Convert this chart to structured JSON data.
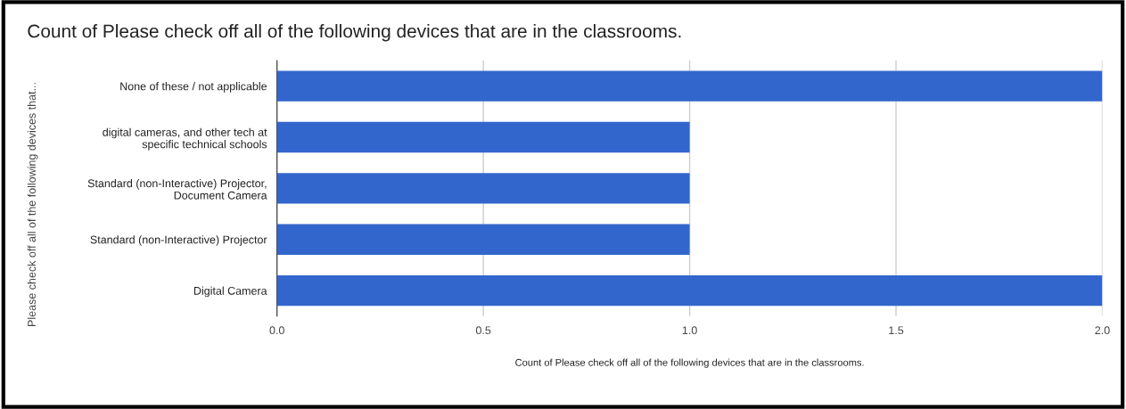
{
  "chart_data": {
    "type": "bar",
    "orientation": "horizontal",
    "title": "Count of Please check off all of the following devices that are in the classrooms.",
    "xlabel": "Count of Please check off all of the following devices that are in the classrooms.",
    "ylabel": "Please check off all of the following devices that...",
    "categories": [
      "None of these / not applicable",
      "digital cameras, and other tech at\nspecific technical schools",
      "Standard (non-Interactive) Projector,\nDocument Camera",
      "Standard (non-Interactive) Projector",
      "Digital Camera"
    ],
    "values": [
      2,
      1,
      1,
      1,
      2
    ],
    "color": "#3366cc",
    "xlim": [
      0,
      2
    ],
    "xticks": [
      {
        "value": 0,
        "label": "0.0"
      },
      {
        "value": 0.5,
        "label": "0.5"
      },
      {
        "value": 1,
        "label": "1.0"
      },
      {
        "value": 1.5,
        "label": "1.5"
      },
      {
        "value": 2,
        "label": "2.0"
      }
    ],
    "grid": "x",
    "legend": false
  }
}
